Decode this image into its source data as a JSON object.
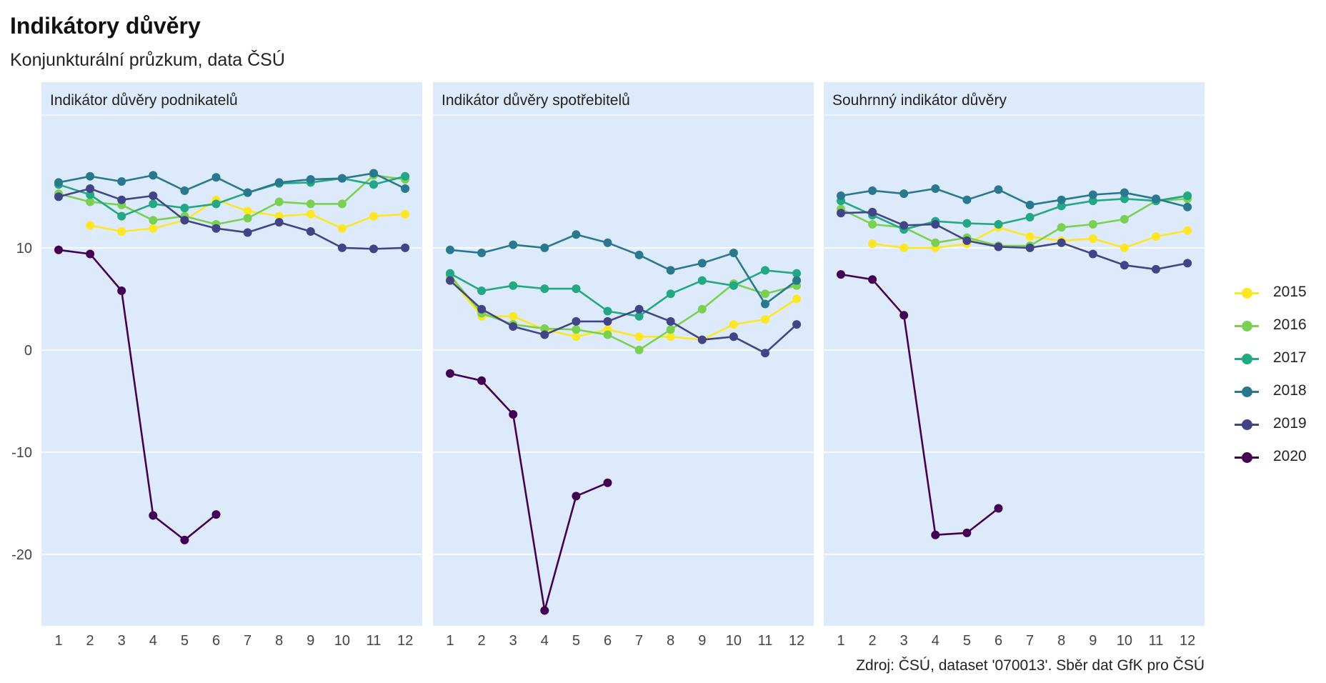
{
  "title": "Indikátory důvěry",
  "subtitle": "Konjunkturální průzkum, data ČSÚ",
  "caption": "Zdroj: ČSÚ, dataset '070013'. Sběr dat GfK pro ČSÚ",
  "colors": {
    "panel_bg": "#ddeafb",
    "2015": "#fde725",
    "2016": "#7ad151",
    "2017": "#22a884",
    "2018": "#2a788e",
    "2019": "#414487",
    "2020": "#440154"
  },
  "chart_data": {
    "type": "line",
    "x": [
      1,
      2,
      3,
      4,
      5,
      6,
      7,
      8,
      9,
      10,
      11,
      12
    ],
    "ylim": [
      -27,
      23
    ],
    "yticks": [
      -20,
      -10,
      0,
      10
    ],
    "grid": true,
    "legend_position": "right",
    "legend": [
      "2015",
      "2016",
      "2017",
      "2018",
      "2019",
      "2020"
    ],
    "panels": [
      {
        "title": "Indikátor důvěry podnikatelů",
        "series": [
          {
            "name": "2015",
            "values": [
              null,
              12.2,
              11.6,
              11.9,
              12.7,
              14.7,
              13.6,
              13.1,
              13.3,
              11.9,
              13.1,
              13.3
            ]
          },
          {
            "name": "2016",
            "values": [
              15.3,
              14.5,
              14.2,
              12.7,
              13.1,
              12.3,
              12.9,
              14.5,
              14.3,
              14.3,
              17.1,
              16.7
            ]
          },
          {
            "name": "2017",
            "values": [
              16.2,
              15.2,
              13.1,
              14.3,
              13.9,
              14.3,
              15.4,
              16.3,
              16.4,
              16.8,
              16.2,
              17.0
            ]
          },
          {
            "name": "2018",
            "values": [
              16.4,
              17.0,
              16.5,
              17.1,
              15.6,
              16.9,
              15.4,
              16.4,
              16.7,
              16.8,
              17.3,
              15.8
            ]
          },
          {
            "name": "2019",
            "values": [
              15.0,
              15.8,
              14.7,
              15.1,
              12.7,
              11.9,
              11.5,
              12.5,
              11.6,
              10.0,
              9.9,
              10.0
            ]
          },
          {
            "name": "2020",
            "values": [
              9.8,
              9.4,
              5.8,
              -16.2,
              -18.6,
              -16.1,
              null,
              null,
              null,
              null,
              null,
              null
            ]
          }
        ]
      },
      {
        "title": "Indikátor důvěry spotřebitelů",
        "series": [
          {
            "name": "2015",
            "values": [
              7.0,
              3.3,
              3.3,
              2.0,
              1.3,
              2.0,
              1.3,
              1.3,
              1.0,
              2.5,
              3.0,
              5.0
            ]
          },
          {
            "name": "2016",
            "values": [
              7.3,
              3.6,
              2.5,
              2.1,
              2.0,
              1.5,
              0.0,
              2.0,
              4.0,
              6.5,
              5.5,
              6.3
            ]
          },
          {
            "name": "2017",
            "values": [
              7.5,
              5.8,
              6.3,
              6.0,
              6.0,
              3.8,
              3.3,
              5.5,
              6.8,
              6.3,
              7.8,
              7.5
            ]
          },
          {
            "name": "2018",
            "values": [
              9.8,
              9.5,
              10.3,
              10.0,
              11.3,
              10.5,
              9.3,
              7.8,
              8.5,
              9.5,
              4.5,
              6.8
            ]
          },
          {
            "name": "2019",
            "values": [
              6.8,
              4.0,
              2.3,
              1.5,
              2.8,
              2.8,
              4.0,
              2.8,
              1.0,
              1.3,
              -0.3,
              2.5
            ]
          },
          {
            "name": "2020",
            "values": [
              -2.3,
              -3.0,
              -6.3,
              -25.5,
              -14.3,
              -13.0,
              null,
              null,
              null,
              null,
              null,
              null
            ]
          }
        ]
      },
      {
        "title": "Souhrnný indikátor důvěry",
        "series": [
          {
            "name": "2015",
            "values": [
              null,
              10.4,
              10.0,
              10.0,
              10.4,
              12.0,
              11.1,
              10.7,
              10.9,
              10.0,
              11.1,
              11.7
            ]
          },
          {
            "name": "2016",
            "values": [
              13.8,
              12.3,
              12.0,
              10.5,
              11.0,
              10.2,
              10.2,
              12.0,
              12.3,
              12.8,
              14.6,
              14.8
            ]
          },
          {
            "name": "2017",
            "values": [
              14.6,
              13.2,
              11.8,
              12.6,
              12.4,
              12.3,
              13.0,
              14.1,
              14.6,
              14.8,
              14.6,
              15.1
            ]
          },
          {
            "name": "2018",
            "values": [
              15.1,
              15.6,
              15.3,
              15.8,
              14.7,
              15.7,
              14.2,
              14.7,
              15.2,
              15.4,
              14.8,
              14.0
            ]
          },
          {
            "name": "2019",
            "values": [
              13.4,
              13.5,
              12.2,
              12.3,
              10.7,
              10.1,
              10.0,
              10.5,
              9.4,
              8.3,
              7.9,
              8.5
            ]
          },
          {
            "name": "2020",
            "values": [
              7.4,
              6.9,
              3.4,
              -18.1,
              -17.9,
              -15.5,
              null,
              null,
              null,
              null,
              null,
              null
            ]
          }
        ]
      }
    ]
  }
}
